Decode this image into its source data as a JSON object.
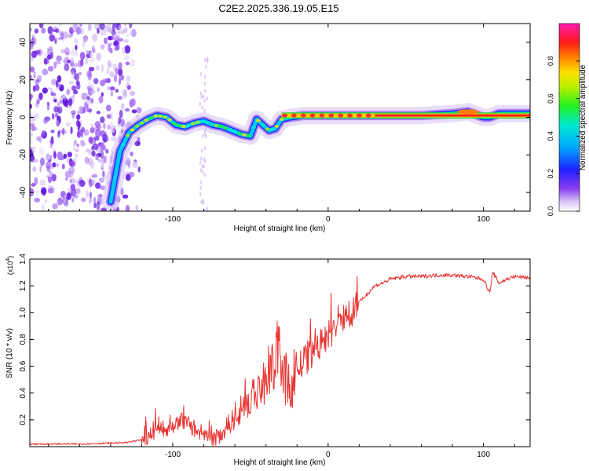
{
  "figure_title": "C2E2.2025.336.19.05.E15",
  "colors": {
    "snr_line": "#e8322e",
    "axis": "#000000",
    "background": "#ffffff"
  },
  "chart_data": [
    {
      "type": "heatmap",
      "title": "C2E2.2025.336.19.05.E15",
      "xlabel": "Height of straight line (km)",
      "ylabel": "Frequency (Hz)",
      "xlim": [
        -192,
        130
      ],
      "ylim": [
        -50,
        50
      ],
      "xticks": [
        -100,
        0,
        100
      ],
      "yticks": [
        -40,
        -20,
        0,
        20,
        40
      ],
      "xtick_labels": [
        "-100",
        "0",
        "100"
      ],
      "ytick_labels": [
        "-40",
        "-20",
        "0",
        "20",
        "40"
      ],
      "colorbar": {
        "label": "Normalized spectral amplitude",
        "range": [
          0,
          1
        ],
        "ticks": [
          0.0,
          0.2,
          0.4,
          0.6,
          0.8
        ],
        "tick_labels": [
          "0.0",
          "0.2",
          "0.4",
          "0.6",
          "0.8"
        ],
        "colormap": "rainbow (white-violet-blue-cyan-green-yellow-red-magenta)"
      },
      "ridge": {
        "description": "dominant frequency trace (Hz) vs height (km)",
        "x": [
          -140,
          -134,
          -128,
          -122,
          -116,
          -110,
          -104,
          -98,
          -92,
          -86,
          -80,
          -74,
          -68,
          -62,
          -56,
          -50,
          -46,
          -42,
          -38,
          -34,
          -30,
          -24,
          -16,
          -8,
          0,
          10,
          20,
          30,
          40,
          60,
          80,
          90,
          100,
          104,
          110,
          130
        ],
        "y": [
          -45,
          -18,
          -8,
          -4,
          -1,
          1,
          0,
          -4,
          -5,
          -3,
          -2,
          -4,
          -5,
          -7,
          -9,
          -10,
          -1,
          -4,
          -7,
          -6,
          -1,
          0,
          1,
          1,
          1,
          1,
          1,
          1,
          1,
          1,
          2,
          3,
          0,
          0,
          2,
          2
        ]
      },
      "noise_region_x": [
        -192,
        -118
      ]
    },
    {
      "type": "line",
      "xlabel": "Height of straight line (km)",
      "ylabel": "SNR (10 * v/v)",
      "y_multiplier_label": "(x10",
      "y_multiplier_exp": "4",
      "xlim": [
        -192,
        130
      ],
      "ylim": [
        0,
        1.4
      ],
      "xticks": [
        -100,
        0,
        100
      ],
      "xtick_labels": [
        "-100",
        "0",
        "100"
      ],
      "yticks": [
        0.2,
        0.4,
        0.6,
        0.8,
        1.0,
        1.2,
        1.4
      ],
      "ytick_labels": [
        "0.2",
        "0.4",
        "0.6",
        "0.8",
        "1.0",
        "1.2",
        "1.4"
      ],
      "series": [
        {
          "name": "SNR",
          "x": [
            -192,
            -160,
            -130,
            -120,
            -110,
            -100,
            -95,
            -90,
            -85,
            -80,
            -75,
            -70,
            -65,
            -60,
            -55,
            -50,
            -45,
            -40,
            -35,
            -32,
            -30,
            -28,
            -25,
            -22,
            -18,
            -14,
            -10,
            -6,
            -2,
            2,
            6,
            10,
            14,
            18,
            22,
            26,
            30,
            35,
            40,
            50,
            60,
            70,
            80,
            90,
            100,
            104,
            106,
            110,
            115,
            120,
            130
          ],
          "y": [
            0.02,
            0.02,
            0.03,
            0.05,
            0.12,
            0.15,
            0.2,
            0.18,
            0.1,
            0.07,
            0.05,
            0.08,
            0.15,
            0.22,
            0.3,
            0.35,
            0.4,
            0.5,
            0.6,
            0.75,
            0.6,
            0.5,
            0.4,
            0.55,
            0.6,
            0.65,
            0.7,
            0.75,
            0.8,
            0.85,
            0.9,
            0.95,
            1.0,
            1.05,
            1.1,
            1.15,
            1.2,
            1.22,
            1.25,
            1.27,
            1.27,
            1.28,
            1.28,
            1.27,
            1.25,
            1.15,
            1.3,
            1.22,
            1.25,
            1.27,
            1.26
          ]
        }
      ]
    }
  ]
}
